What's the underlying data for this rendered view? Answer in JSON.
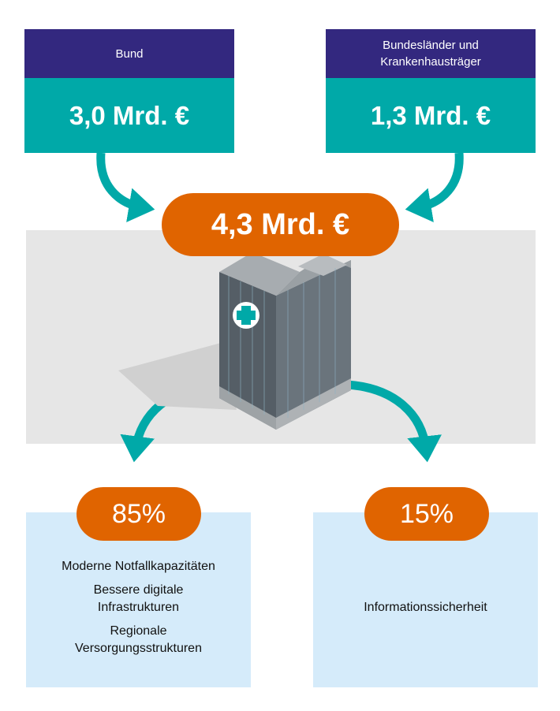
{
  "sources": [
    {
      "label": "Bund",
      "amount": "3,0 Mrd. €"
    },
    {
      "label": "Bundesländer und Krankenhausträger",
      "amount": "1,3 Mrd. €"
    }
  ],
  "total": "4,3 Mrd. €",
  "allocations": [
    {
      "share": "85%",
      "items": [
        "Moderne Notfallkapazitäten",
        "Bessere digitale Infrastrukturen",
        "Regionale Versorgungsstrukturen"
      ]
    },
    {
      "share": "15%",
      "items": [
        "Informationssicherheit"
      ]
    }
  ],
  "colors": {
    "header": "#33287f",
    "teal": "#00a9a8",
    "orange": "#e06400",
    "light_blue": "#d5ebfa",
    "band": "#e6e6e6"
  },
  "icons": [
    "arrow-curved-icon",
    "hospital-building-icon",
    "medical-cross-icon"
  ]
}
